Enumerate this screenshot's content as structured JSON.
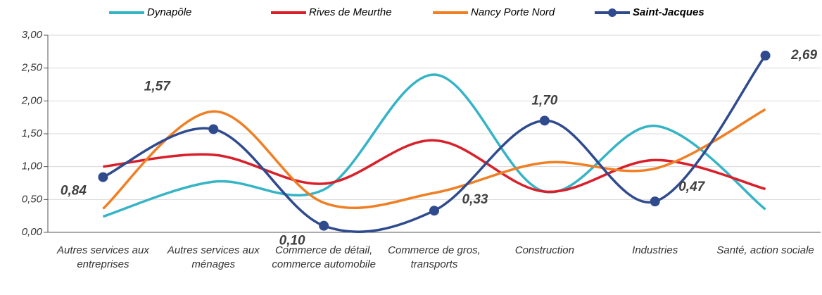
{
  "chart_data": {
    "type": "line",
    "categories": [
      "Autres services aux entreprises",
      "Autres services aux ménages",
      "Commerce de détail, commerce automobile",
      "Commerce de gros, transports",
      "Construction",
      "Industries",
      "Santé, action sociale"
    ],
    "series": [
      {
        "name": "Dynapôle",
        "color": "#35b4c6",
        "values": [
          0.24,
          0.77,
          0.65,
          2.4,
          0.62,
          1.62,
          0.35
        ]
      },
      {
        "name": "Rives de Meurthe",
        "color": "#d81f2a",
        "values": [
          1.0,
          1.18,
          0.74,
          1.4,
          0.62,
          1.1,
          0.66
        ]
      },
      {
        "name": "Nancy Porte Nord",
        "color": "#f07f24",
        "values": [
          0.36,
          1.84,
          0.45,
          0.6,
          1.06,
          0.97,
          1.87
        ]
      },
      {
        "name": "Saint-Jacques",
        "color": "#2f4b8e",
        "values": [
          0.84,
          1.57,
          0.1,
          0.33,
          1.7,
          0.47,
          2.69
        ],
        "markers": true,
        "value_labels": [
          "0,84",
          "1,57",
          "0,10",
          "0,33",
          "1,70",
          "0,47",
          "2,69"
        ]
      }
    ],
    "ylim": [
      0,
      3
    ],
    "yticks": [
      {
        "value": 0,
        "label": "0,00"
      },
      {
        "value": 0.5,
        "label": "0,50"
      },
      {
        "value": 1,
        "label": "1,00"
      },
      {
        "value": 1.5,
        "label": "1,50"
      },
      {
        "value": 2,
        "label": "2,00"
      },
      {
        "value": 2.5,
        "label": "2,50"
      },
      {
        "value": 3,
        "label": "3,00"
      }
    ],
    "grid": true,
    "legend": "top"
  }
}
